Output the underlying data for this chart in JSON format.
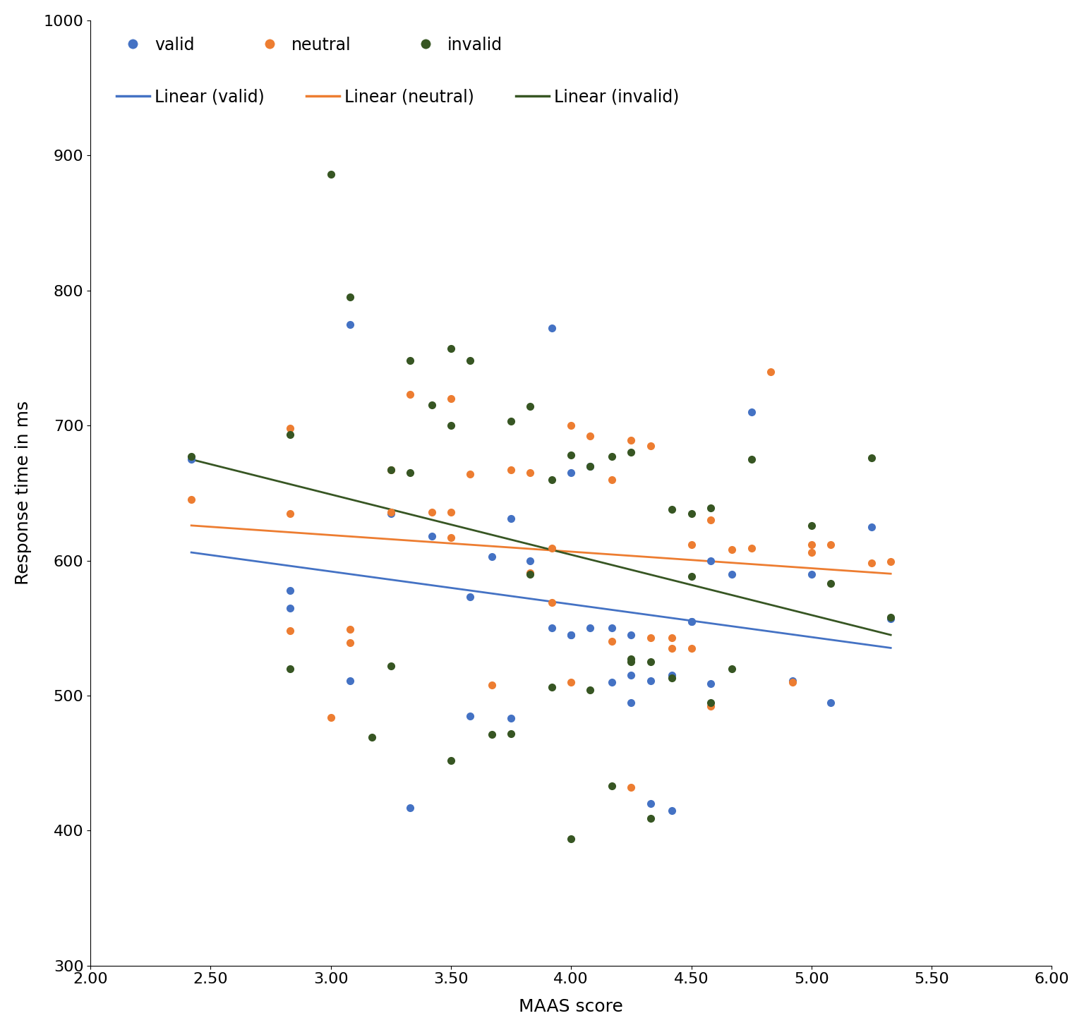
{
  "valid_x": [
    2.42,
    2.83,
    2.83,
    3.08,
    3.08,
    3.25,
    3.33,
    3.42,
    3.58,
    3.58,
    3.67,
    3.75,
    3.75,
    3.83,
    3.92,
    3.92,
    4.0,
    4.0,
    4.0,
    4.08,
    4.08,
    4.17,
    4.17,
    4.25,
    4.25,
    4.25,
    4.33,
    4.33,
    4.42,
    4.42,
    4.5,
    4.5,
    4.58,
    4.58,
    4.67,
    4.75,
    4.92,
    5.0,
    5.08,
    5.25,
    5.33
  ],
  "valid_y": [
    675,
    578,
    565,
    775,
    511,
    635,
    417,
    618,
    485,
    573,
    603,
    483,
    631,
    600,
    550,
    772,
    665,
    545,
    545,
    670,
    550,
    550,
    510,
    545,
    515,
    495,
    420,
    511,
    515,
    415,
    555,
    555,
    600,
    509,
    590,
    710,
    511,
    590,
    495,
    625,
    557
  ],
  "neutral_x": [
    2.42,
    2.83,
    2.83,
    2.83,
    3.0,
    3.08,
    3.08,
    3.25,
    3.25,
    3.33,
    3.42,
    3.5,
    3.5,
    3.5,
    3.58,
    3.67,
    3.75,
    3.83,
    3.83,
    3.92,
    3.92,
    4.0,
    4.0,
    4.08,
    4.17,
    4.17,
    4.25,
    4.25,
    4.33,
    4.33,
    4.42,
    4.42,
    4.5,
    4.5,
    4.58,
    4.58,
    4.67,
    4.75,
    4.83,
    4.92,
    5.0,
    5.0,
    5.08,
    5.25,
    5.33
  ],
  "neutral_y": [
    645,
    635,
    698,
    548,
    484,
    549,
    539,
    667,
    636,
    723,
    636,
    720,
    636,
    617,
    664,
    508,
    667,
    591,
    665,
    569,
    609,
    700,
    510,
    692,
    540,
    660,
    689,
    432,
    543,
    685,
    535,
    543,
    535,
    612,
    630,
    492,
    608,
    609,
    740,
    510,
    612,
    606,
    612,
    598,
    599
  ],
  "invalid_x": [
    2.42,
    2.83,
    2.83,
    3.0,
    3.08,
    3.17,
    3.25,
    3.25,
    3.33,
    3.33,
    3.42,
    3.5,
    3.5,
    3.5,
    3.58,
    3.67,
    3.75,
    3.75,
    3.83,
    3.83,
    3.92,
    3.92,
    4.0,
    4.0,
    4.08,
    4.08,
    4.17,
    4.17,
    4.25,
    4.25,
    4.25,
    4.33,
    4.33,
    4.42,
    4.42,
    4.5,
    4.5,
    4.58,
    4.58,
    4.67,
    4.75,
    5.0,
    5.08,
    5.25,
    5.33
  ],
  "invalid_y": [
    677,
    693,
    520,
    886,
    795,
    469,
    667,
    522,
    748,
    665,
    715,
    757,
    700,
    452,
    748,
    471,
    703,
    472,
    714,
    590,
    506,
    660,
    678,
    394,
    670,
    504,
    677,
    433,
    680,
    527,
    525,
    525,
    409,
    638,
    513,
    588,
    635,
    639,
    495,
    520,
    675,
    626,
    583,
    676,
    558
  ],
  "valid_color": "#4472c4",
  "neutral_color": "#ed7d31",
  "invalid_color": "#375623",
  "valid_line_color": "#4472c4",
  "neutral_line_color": "#ed7d31",
  "invalid_line_color": "#375623",
  "xlabel": "MAAS score",
  "ylabel": "Response time in ms",
  "xlim": [
    2.0,
    6.0
  ],
  "ylim": [
    300,
    1000
  ],
  "xticks": [
    2.0,
    2.5,
    3.0,
    3.5,
    4.0,
    4.5,
    5.0,
    5.5,
    6.0
  ],
  "yticks": [
    300,
    400,
    500,
    600,
    700,
    800,
    900,
    1000
  ],
  "marker_size": 7,
  "line_width": 2.0,
  "background_color": "#ffffff",
  "tick_fontsize": 16,
  "label_fontsize": 18,
  "legend_fontsize": 17
}
